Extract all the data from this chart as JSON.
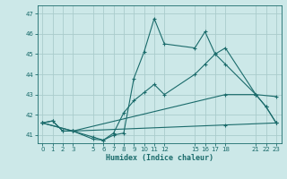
{
  "xlabel": "Humidex (Indice chaleur)",
  "ylabel": "",
  "xlim": [
    -0.5,
    23.5
  ],
  "ylim": [
    40.6,
    47.4
  ],
  "yticks": [
    41,
    42,
    43,
    44,
    45,
    46,
    47
  ],
  "xticks": [
    0,
    1,
    2,
    3,
    5,
    6,
    7,
    8,
    9,
    10,
    11,
    12,
    15,
    16,
    17,
    18,
    21,
    22,
    23
  ],
  "bg_color": "#cce8e8",
  "grid_color": "#aacccc",
  "line_color": "#1a6b6b",
  "line1_x": [
    0,
    1,
    2,
    3,
    5,
    6,
    7,
    8,
    9,
    10,
    11,
    12,
    15,
    16,
    17,
    18,
    21,
    22,
    23
  ],
  "line1_y": [
    41.6,
    41.7,
    41.2,
    41.2,
    40.8,
    40.75,
    41.0,
    41.1,
    43.8,
    45.1,
    46.75,
    45.5,
    45.3,
    46.1,
    45.0,
    45.3,
    43.0,
    42.4,
    41.6
  ],
  "line2_x": [
    0,
    1,
    2,
    3,
    5,
    6,
    7,
    8,
    9,
    10,
    11,
    12,
    15,
    16,
    17,
    18,
    21,
    22,
    23
  ],
  "line2_y": [
    41.6,
    41.7,
    41.2,
    41.2,
    40.9,
    40.75,
    41.1,
    42.1,
    42.7,
    43.1,
    43.5,
    43.0,
    44.0,
    44.5,
    45.0,
    44.5,
    43.0,
    42.4,
    41.6
  ],
  "line3_x": [
    0,
    3,
    18,
    23
  ],
  "line3_y": [
    41.6,
    41.2,
    41.5,
    41.6
  ],
  "line4_x": [
    0,
    3,
    18,
    21,
    23
  ],
  "line4_y": [
    41.6,
    41.2,
    43.0,
    43.0,
    42.9
  ]
}
